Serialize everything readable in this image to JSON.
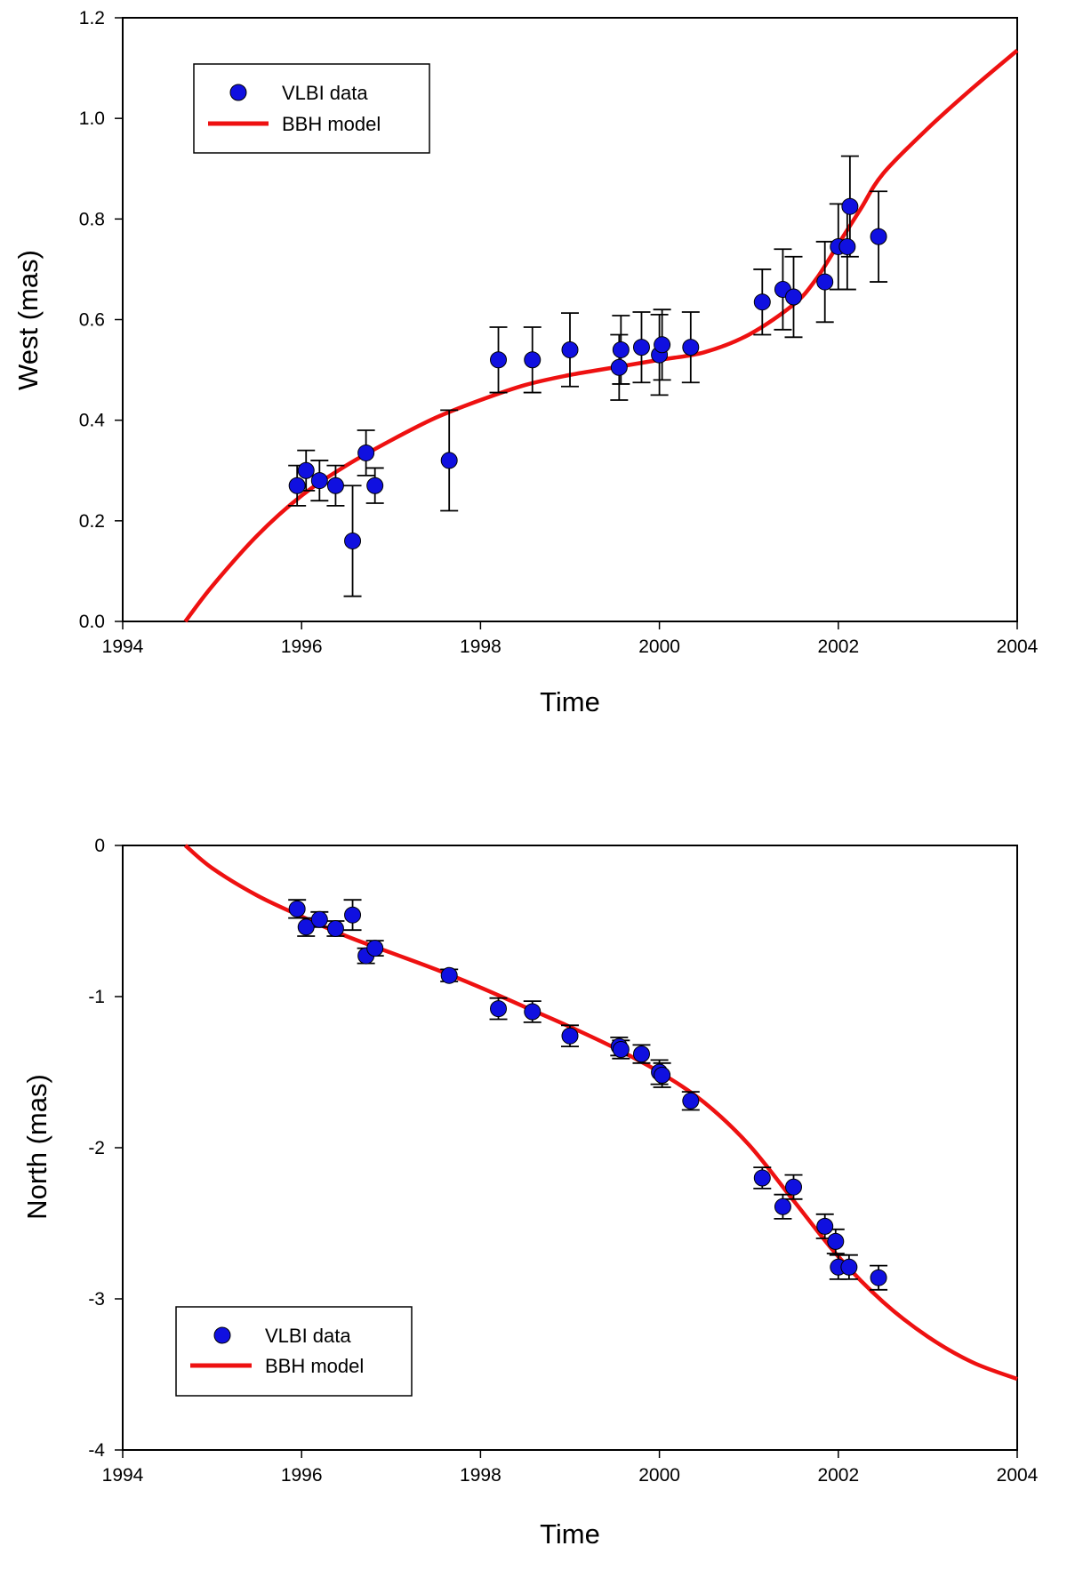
{
  "chart_data": [
    {
      "type": "scatter",
      "title": "",
      "xlabel": "Time",
      "ylabel": "West (mas)",
      "xlim": [
        1994,
        2004
      ],
      "ylim": [
        0.0,
        1.2
      ],
      "xticks": [
        "1994",
        "1996",
        "1998",
        "2000",
        "2002",
        "2004"
      ],
      "yticks": [
        "0.0",
        "0.2",
        "0.4",
        "0.6",
        "0.8",
        "1.0",
        "1.2"
      ],
      "grid": false,
      "legend_position": "top-left",
      "series": [
        {
          "name": "VLBI data",
          "kind": "points-with-errorbars",
          "color": "#1010e0",
          "points": [
            {
              "x": 1995.95,
              "y": 0.27,
              "err": 0.04
            },
            {
              "x": 1996.05,
              "y": 0.3,
              "err": 0.04
            },
            {
              "x": 1996.2,
              "y": 0.28,
              "err": 0.04
            },
            {
              "x": 1996.38,
              "y": 0.27,
              "err": 0.04
            },
            {
              "x": 1996.57,
              "y": 0.16,
              "err": 0.11
            },
            {
              "x": 1996.72,
              "y": 0.335,
              "err": 0.045
            },
            {
              "x": 1996.82,
              "y": 0.27,
              "err": 0.035
            },
            {
              "x": 1997.65,
              "y": 0.32,
              "err": 0.1
            },
            {
              "x": 1998.2,
              "y": 0.52,
              "err": 0.065
            },
            {
              "x": 1998.58,
              "y": 0.52,
              "err": 0.065
            },
            {
              "x": 1999.0,
              "y": 0.54,
              "err": 0.073
            },
            {
              "x": 1999.55,
              "y": 0.505,
              "err": 0.065
            },
            {
              "x": 1999.57,
              "y": 0.54,
              "err": 0.068
            },
            {
              "x": 1999.8,
              "y": 0.545,
              "err": 0.07
            },
            {
              "x": 2000.0,
              "y": 0.53,
              "err": 0.08
            },
            {
              "x": 2000.03,
              "y": 0.55,
              "err": 0.07
            },
            {
              "x": 2000.35,
              "y": 0.545,
              "err": 0.07
            },
            {
              "x": 2001.15,
              "y": 0.635,
              "err": 0.065
            },
            {
              "x": 2001.38,
              "y": 0.66,
              "err": 0.08
            },
            {
              "x": 2001.5,
              "y": 0.645,
              "err": 0.08
            },
            {
              "x": 2001.85,
              "y": 0.675,
              "err": 0.08
            },
            {
              "x": 2002.0,
              "y": 0.745,
              "err": 0.085
            },
            {
              "x": 2002.1,
              "y": 0.745,
              "err": 0.085
            },
            {
              "x": 2002.13,
              "y": 0.825,
              "err": 0.1
            },
            {
              "x": 2002.45,
              "y": 0.765,
              "err": 0.09
            }
          ]
        },
        {
          "name": "BBH model",
          "kind": "line",
          "color": "#ee1111",
          "x": [
            1994.7,
            1995.0,
            1995.5,
            1996.0,
            1996.5,
            1997.0,
            1997.5,
            1998.0,
            1998.5,
            1999.0,
            1999.5,
            2000.0,
            2000.5,
            2001.0,
            2001.5,
            2001.75,
            2002.0,
            2002.25,
            2002.5,
            2003.0,
            2003.5,
            2004.0
          ],
          "y": [
            0.0,
            0.07,
            0.17,
            0.25,
            0.31,
            0.36,
            0.405,
            0.44,
            0.47,
            0.49,
            0.505,
            0.52,
            0.535,
            0.57,
            0.63,
            0.68,
            0.75,
            0.82,
            0.89,
            0.98,
            1.06,
            1.135
          ]
        }
      ]
    },
    {
      "type": "scatter",
      "title": "",
      "xlabel": "Time",
      "ylabel": "North (mas)",
      "xlim": [
        1994,
        2004
      ],
      "ylim": [
        -4,
        0
      ],
      "xticks": [
        "1994",
        "1996",
        "1998",
        "2000",
        "2002",
        "2004"
      ],
      "yticks": [
        "-4",
        "-3",
        "-2",
        "-1",
        "0"
      ],
      "grid": false,
      "legend_position": "bottom-left",
      "series": [
        {
          "name": "VLBI data",
          "kind": "points-with-errorbars",
          "color": "#1010e0",
          "points": [
            {
              "x": 1995.95,
              "y": -0.42,
              "err": 0.06
            },
            {
              "x": 1996.05,
              "y": -0.54,
              "err": 0.06
            },
            {
              "x": 1996.2,
              "y": -0.49,
              "err": 0.05
            },
            {
              "x": 1996.38,
              "y": -0.55,
              "err": 0.05
            },
            {
              "x": 1996.57,
              "y": -0.46,
              "err": 0.1
            },
            {
              "x": 1996.72,
              "y": -0.73,
              "err": 0.05
            },
            {
              "x": 1996.82,
              "y": -0.68,
              "err": 0.05
            },
            {
              "x": 1997.65,
              "y": -0.86,
              "err": 0.04
            },
            {
              "x": 1998.2,
              "y": -1.08,
              "err": 0.07
            },
            {
              "x": 1998.58,
              "y": -1.1,
              "err": 0.07
            },
            {
              "x": 1999.0,
              "y": -1.26,
              "err": 0.07
            },
            {
              "x": 1999.55,
              "y": -1.33,
              "err": 0.06
            },
            {
              "x": 1999.57,
              "y": -1.35,
              "err": 0.06
            },
            {
              "x": 1999.8,
              "y": -1.38,
              "err": 0.06
            },
            {
              "x": 2000.0,
              "y": -1.5,
              "err": 0.08
            },
            {
              "x": 2000.03,
              "y": -1.52,
              "err": 0.08
            },
            {
              "x": 2000.35,
              "y": -1.69,
              "err": 0.06
            },
            {
              "x": 2001.15,
              "y": -2.2,
              "err": 0.07
            },
            {
              "x": 2001.38,
              "y": -2.39,
              "err": 0.08
            },
            {
              "x": 2001.5,
              "y": -2.26,
              "err": 0.08
            },
            {
              "x": 2001.85,
              "y": -2.52,
              "err": 0.08
            },
            {
              "x": 2001.97,
              "y": -2.62,
              "err": 0.08
            },
            {
              "x": 2002.0,
              "y": -2.79,
              "err": 0.08
            },
            {
              "x": 2002.12,
              "y": -2.79,
              "err": 0.08
            },
            {
              "x": 2002.45,
              "y": -2.86,
              "err": 0.08
            }
          ]
        },
        {
          "name": "BBH model",
          "kind": "line",
          "color": "#ee1111",
          "x": [
            1994.7,
            1995.0,
            1995.5,
            1996.0,
            1996.5,
            1997.0,
            1997.5,
            1998.0,
            1998.5,
            1999.0,
            1999.5,
            2000.0,
            2000.5,
            2001.0,
            2001.5,
            2002.0,
            2002.5,
            2003.0,
            2003.5,
            2004.0
          ],
          "y": [
            0.0,
            -0.15,
            -0.33,
            -0.47,
            -0.6,
            -0.71,
            -0.82,
            -0.94,
            -1.07,
            -1.2,
            -1.34,
            -1.5,
            -1.7,
            -1.98,
            -2.35,
            -2.72,
            -3.02,
            -3.25,
            -3.42,
            -3.53
          ]
        }
      ]
    }
  ]
}
